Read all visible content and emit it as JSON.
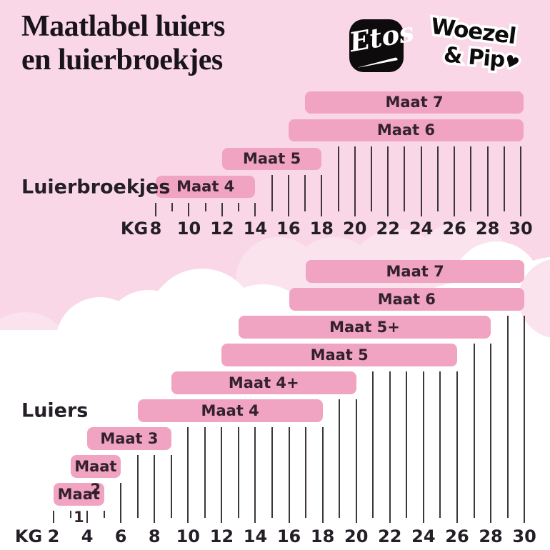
{
  "page": {
    "title_line1": "Maatlabel luiers",
    "title_line2": "en luierbroekjes"
  },
  "logos": {
    "etos_text": "Etos",
    "woezel_line1": "Woezel",
    "woezel_line2": "& Pip",
    "woezel_heart": "♥"
  },
  "colors": {
    "sky_pink": "#F9D7E6",
    "cloud_pink": "#FBE3EE",
    "cloud_white": "#FFFFFF",
    "bar_pink": "#F1A4C2",
    "bar_text": "#33222E",
    "axis_text": "#241F26",
    "tick": "#3E363C",
    "logo_black": "#0D0B0C"
  },
  "chart_data": [
    {
      "type": "bar",
      "variant": "horizontal-range",
      "section_label": "Luierbroekjes",
      "unit_label": "KG",
      "axis": {
        "min_kg": 8,
        "max_kg": 30,
        "tick_step_kg": 1,
        "labeled_ticks": [
          8,
          10,
          12,
          14,
          16,
          18,
          20,
          22,
          24,
          26,
          28,
          30
        ]
      },
      "bars": [
        {
          "label": "Maat 4",
          "from_kg": 8,
          "to_kg": 14,
          "open_ended": false
        },
        {
          "label": "Maat 5",
          "from_kg": 12,
          "to_kg": 18,
          "open_ended": false
        },
        {
          "label": "Maat 6",
          "from_kg": 16,
          "to_kg": 30,
          "open_ended": true
        },
        {
          "label": "Maat 7",
          "from_kg": 17,
          "to_kg": 30,
          "open_ended": true
        }
      ]
    },
    {
      "type": "bar",
      "variant": "horizontal-range",
      "section_label": "Luiers",
      "unit_label": "KG",
      "axis": {
        "min_kg": 2,
        "max_kg": 30,
        "tick_step_kg": 1,
        "labeled_ticks": [
          2,
          4,
          6,
          8,
          10,
          12,
          14,
          16,
          18,
          20,
          22,
          24,
          26,
          28,
          30
        ]
      },
      "bars": [
        {
          "label": "Maat 1",
          "from_kg": 2,
          "to_kg": 5,
          "open_ended": false
        },
        {
          "label": "Maat 2",
          "from_kg": 3,
          "to_kg": 6,
          "open_ended": false
        },
        {
          "label": "Maat 3",
          "from_kg": 4,
          "to_kg": 9,
          "open_ended": false
        },
        {
          "label": "Maat 4",
          "from_kg": 7,
          "to_kg": 18,
          "open_ended": false
        },
        {
          "label": "Maat 4+",
          "from_kg": 9,
          "to_kg": 20,
          "open_ended": false
        },
        {
          "label": "Maat 5",
          "from_kg": 12,
          "to_kg": 26,
          "open_ended": false
        },
        {
          "label": "Maat 5+",
          "from_kg": 13,
          "to_kg": 28,
          "open_ended": false
        },
        {
          "label": "Maat 6",
          "from_kg": 16,
          "to_kg": 30,
          "open_ended": true
        },
        {
          "label": "Maat 7",
          "from_kg": 17,
          "to_kg": 30,
          "open_ended": true
        }
      ]
    }
  ]
}
